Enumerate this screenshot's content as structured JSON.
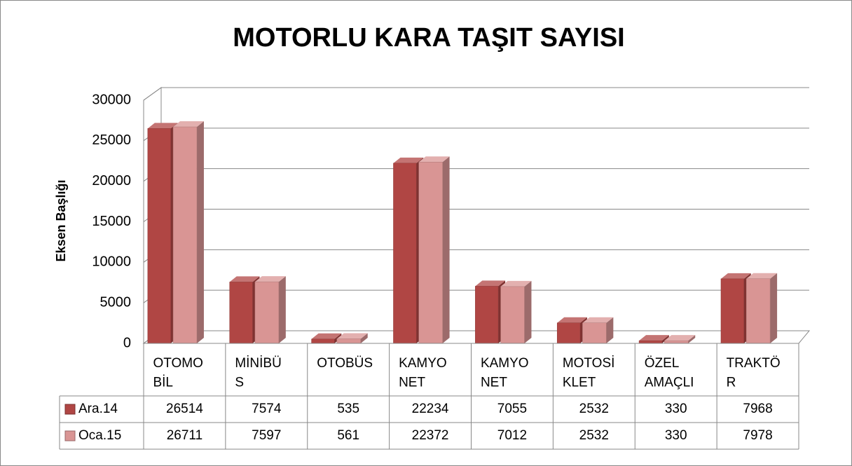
{
  "chart_data": {
    "type": "bar3d",
    "title": "MOTORLU KARA TAŞIT SAYISI",
    "y_label": "Eksen Başlığı",
    "categories": [
      "OTOMO\nBİL",
      "MİNİBÜ\nS",
      "OTOBÜS",
      "KAMYO\nNET",
      "KAMYO\nNET",
      "MOTOSİ\nKLET",
      "ÖZEL\nAMAÇLI",
      "TRAKTÖ\nR"
    ],
    "series": [
      {
        "name": "Ara.14",
        "color": "#b04644",
        "values": [
          26514,
          7574,
          535,
          22234,
          7055,
          2532,
          330,
          7968
        ]
      },
      {
        "name": "Oca.15",
        "color": "#d99594",
        "values": [
          26711,
          7597,
          561,
          22372,
          7012,
          2532,
          330,
          7978
        ]
      }
    ],
    "ylim": [
      0,
      30000
    ],
    "yticks": [
      0,
      5000,
      10000,
      15000,
      20000,
      25000,
      30000
    ],
    "grid": true
  }
}
